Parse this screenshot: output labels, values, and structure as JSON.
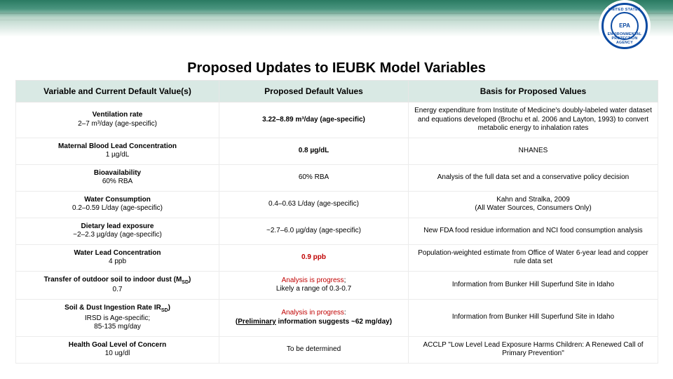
{
  "seal": {
    "top": "UNITED STATES",
    "bottom": "ENVIRONMENTAL PROTECTION AGENCY",
    "inner": "EPA"
  },
  "title": "Proposed Updates to IEUBK Model Variables",
  "headers": {
    "c1": "Variable and Current Default Value(s)",
    "c2": "Proposed Default Values",
    "c3": "Basis for Proposed Values"
  },
  "rows": [
    {
      "var_name": "Ventilation rate",
      "var_sub": "2–7 m³/day (age-specific)",
      "proposed_html": "<span class=\"bold\">3.22–8.89 m³/day (age-specific)</span>",
      "basis": "Energy expenditure from Institute of Medicine's doubly-labeled water dataset and equations developed (Brochu et al. 2006 and Layton, 1993) to convert metabolic energy to inhalation rates"
    },
    {
      "var_name": "Maternal Blood Lead Concentration",
      "var_sub": "1 µg/dL",
      "proposed_html": "<span class=\"bold\">0.8 µg/dL</span>",
      "basis": "NHANES"
    },
    {
      "var_name": "Bioavailability",
      "var_sub": "60% RBA",
      "proposed_html": "60% RBA",
      "basis": "Analysis of the full data set and a conservative policy decision"
    },
    {
      "var_name": "Water Consumption",
      "var_sub": "0.2–0.59 L/day (age-specific)",
      "proposed_html": "0.4–0.63  L/day (age-specific)",
      "basis": "Kahn and Stralka, 2009<br>(All Water Sources, Consumers Only)"
    },
    {
      "var_name": "Dietary lead exposure",
      "var_sub": "~2–2.3 µg/day (age-specific)",
      "proposed_html": "~2.7–6.0 µg/day (age-specific)",
      "basis": "New FDA food residue information and NCI food consumption analysis"
    },
    {
      "var_name": "Water Lead Concentration",
      "var_sub": "4 ppb",
      "proposed_html": "<span class=\"bold red\">0.9 ppb</span>",
      "basis": "Population-weighted estimate from Office of Water 6-year lead and copper rule data set"
    },
    {
      "var_name_html": "Transfer of outdoor soil to indoor dust (M<sub>SD</sub>)",
      "var_sub": "0.7",
      "proposed_html": "<span class=\"red\">Analysis is progress</span>;<br>Likely a range of 0.3-0.7",
      "basis": "Information from Bunker Hill Superfund Site in Idaho"
    },
    {
      "var_name_html": "Soil &amp; Dust Ingestion Rate IR<sub>SD</sub>)",
      "var_sub": "IRSD is Age-specific;<br>85-135 mg/day",
      "proposed_html": "<span class=\"red\">Analysis in progress</span>:<br><span class=\"bold\">(<span class=\"under\">Preliminary</span> information suggests ~62 mg/day)</span>",
      "basis": "Information from Bunker Hill Superfund Site in Idaho"
    },
    {
      "var_name": "Health Goal Level of Concern",
      "var_sub": "10 ug/dl",
      "proposed_html": "To be determined",
      "basis": "ACCLP  \"Low Level Lead Exposure Harms Children: A Renewed Call of Primary Prevention\""
    }
  ],
  "colors": {
    "header_bg": "#d9e9e4",
    "border": "#ececec",
    "red": "#c00000",
    "seal_blue": "#0b4aa2",
    "banner_green_dark": "#2a7a62",
    "banner_green_mid": "#4a957f",
    "banner_green_light": "#b8d4c8"
  },
  "fonts": {
    "title_pt": 20,
    "header_pt": 12,
    "cell_pt": 10
  }
}
